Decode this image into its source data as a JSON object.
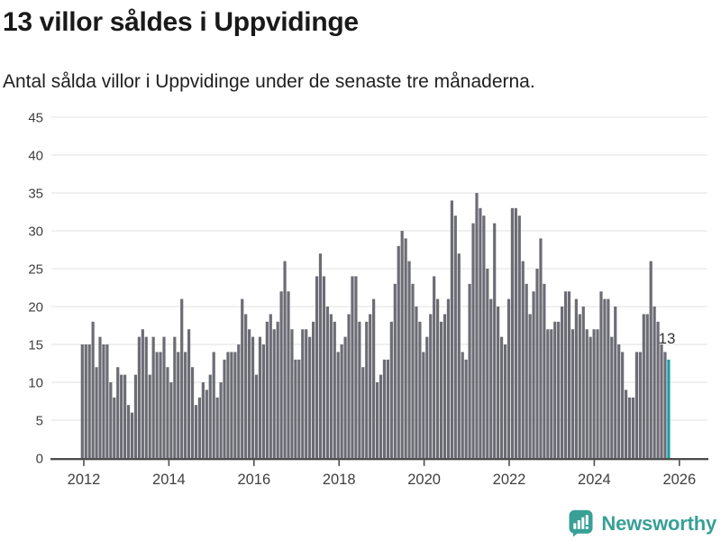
{
  "header": {
    "title": "13 villor såldes i Uppvidinge",
    "subtitle": "Antal sålda villor i Uppvidinge under de senaste tre månaderna."
  },
  "chart_data": {
    "type": "bar",
    "title": "13 villor såldes i Uppvidinge",
    "x_start_month": "2012-01",
    "x_end_month": "2025-10",
    "frequency": "monthly",
    "values": [
      15,
      15,
      15,
      18,
      12,
      16,
      15,
      15,
      10,
      8,
      12,
      11,
      11,
      7,
      6,
      11,
      16,
      17,
      16,
      11,
      16,
      14,
      14,
      16,
      12,
      10,
      16,
      14,
      21,
      14,
      17,
      12,
      7,
      8,
      10,
      9,
      11,
      14,
      8,
      10,
      13,
      14,
      14,
      14,
      15,
      21,
      19,
      17,
      16,
      11,
      16,
      15,
      18,
      19,
      17,
      18,
      22,
      26,
      22,
      17,
      13,
      13,
      17,
      17,
      16,
      18,
      24,
      27,
      24,
      20,
      19,
      18,
      14,
      15,
      16,
      19,
      24,
      24,
      18,
      12,
      18,
      19,
      21,
      10,
      11,
      13,
      13,
      18,
      23,
      28,
      30,
      29,
      26,
      23,
      20,
      18,
      14,
      16,
      19,
      24,
      21,
      18,
      19,
      21,
      34,
      32,
      27,
      14,
      13,
      23,
      31,
      35,
      33,
      32,
      25,
      21,
      31,
      20,
      16,
      15,
      21,
      33,
      33,
      32,
      26,
      23,
      19,
      22,
      25,
      29,
      23,
      17,
      17,
      18,
      18,
      20,
      22,
      22,
      17,
      21,
      19,
      20,
      17,
      16,
      17,
      17,
      22,
      21,
      21,
      16,
      20,
      15,
      14,
      9,
      8,
      8,
      14,
      14,
      19,
      19,
      26,
      20,
      18,
      15,
      14,
      13
    ],
    "highlight_last": true,
    "last_value_label": "13",
    "ylim": [
      0,
      45
    ],
    "y_ticks": [
      0,
      5,
      10,
      15,
      20,
      25,
      30,
      35,
      40,
      45
    ],
    "x_year_ticks": [
      2012,
      2014,
      2016,
      2018,
      2020,
      2022,
      2024,
      2026
    ],
    "grid": "horizontal",
    "legend": "none",
    "bar_color": "#6c6c75",
    "highlight_color": "#16a0a0",
    "grid_color": "#e7e7e7",
    "axis_color": "#4c4c4c",
    "tick_label_color": "#3f3f3f",
    "annotation_color": "#333333"
  },
  "footer": {
    "brand": "Newsworthy",
    "logo_color": "#38a096",
    "logo_icon": "bar-chart-speech-bubble"
  }
}
